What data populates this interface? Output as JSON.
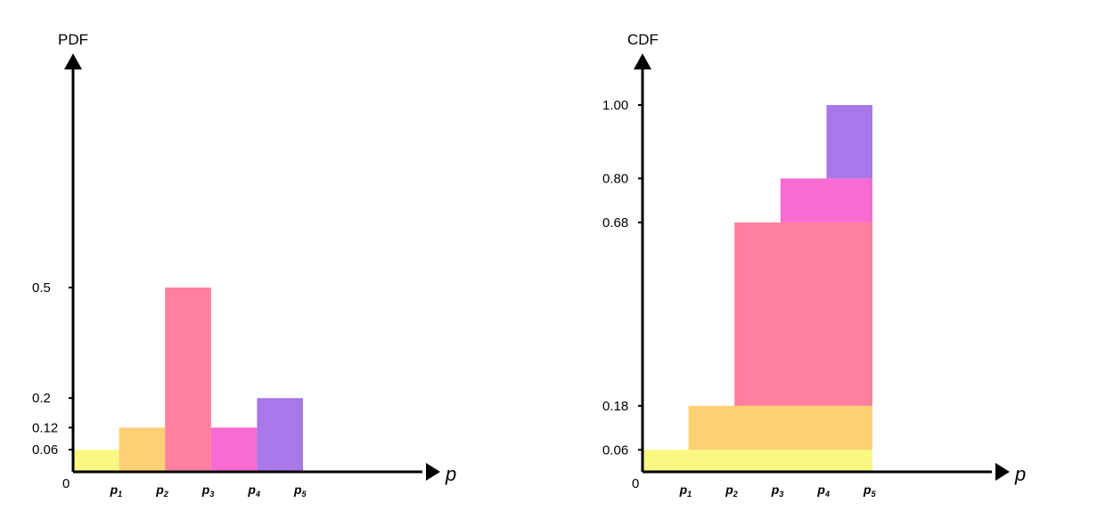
{
  "chart_data": [
    {
      "type": "bar",
      "ylabel": "PDF",
      "xlabel": "p",
      "origin_label": "0",
      "categories": [
        "p1",
        "p2",
        "p3",
        "p4",
        "p5"
      ],
      "category_display": [
        {
          "base": "p",
          "sub": "1"
        },
        {
          "base": "p",
          "sub": "2"
        },
        {
          "base": "p",
          "sub": "3"
        },
        {
          "base": "p",
          "sub": "4"
        },
        {
          "base": "p",
          "sub": "5"
        }
      ],
      "values": [
        0.06,
        0.12,
        0.5,
        0.12,
        0.2
      ],
      "colors": [
        "#f9f883",
        "#fed074",
        "#ff7f9e",
        "#f86bd1",
        "#a877e8"
      ],
      "yticks": [
        {
          "value": 0.06,
          "label": "0.06"
        },
        {
          "value": 0.12,
          "label": "0.12"
        },
        {
          "value": 0.2,
          "label": "0.2"
        },
        {
          "value": 0.5,
          "label": "0.5"
        }
      ]
    },
    {
      "type": "bar",
      "ylabel": "CDF",
      "xlabel": "p",
      "origin_label": "0",
      "categories": [
        "p1",
        "p2",
        "p3",
        "p4",
        "p5"
      ],
      "category_display": [
        {
          "base": "p",
          "sub": "1"
        },
        {
          "base": "p",
          "sub": "2"
        },
        {
          "base": "p",
          "sub": "3"
        },
        {
          "base": "p",
          "sub": "4"
        },
        {
          "base": "p",
          "sub": "5"
        }
      ],
      "segments": [
        {
          "from": 0.0,
          "to": 0.06,
          "x_start": 0,
          "x_end": 5,
          "color": "#f9f883"
        },
        {
          "from": 0.06,
          "to": 0.18,
          "x_start": 1,
          "x_end": 5,
          "color": "#fed074"
        },
        {
          "from": 0.18,
          "to": 0.68,
          "x_start": 2,
          "x_end": 5,
          "color": "#ff7f9e"
        },
        {
          "from": 0.68,
          "to": 0.8,
          "x_start": 3,
          "x_end": 5,
          "color": "#f86bd1"
        },
        {
          "from": 0.8,
          "to": 1.0,
          "x_start": 4,
          "x_end": 5,
          "color": "#a877e8"
        }
      ],
      "yticks": [
        {
          "value": 0.06,
          "label": "0.06"
        },
        {
          "value": 0.18,
          "label": "0.18"
        },
        {
          "value": 0.68,
          "label": "0.68"
        },
        {
          "value": 0.8,
          "label": "0.80"
        },
        {
          "value": 1.0,
          "label": "1.00"
        }
      ]
    }
  ]
}
